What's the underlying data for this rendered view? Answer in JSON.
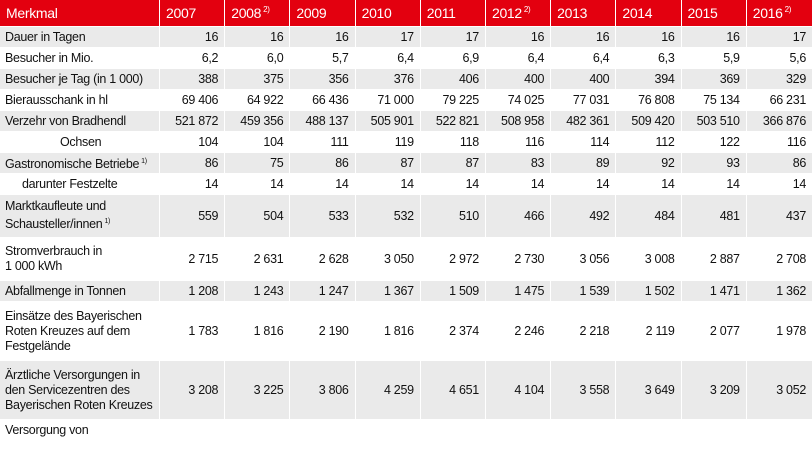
{
  "table": {
    "header_label": "Merkmal",
    "years": [
      {
        "year": "2007",
        "note": ""
      },
      {
        "year": "2008",
        "note": "2)"
      },
      {
        "year": "2009",
        "note": ""
      },
      {
        "year": "2010",
        "note": ""
      },
      {
        "year": "2011",
        "note": ""
      },
      {
        "year": "2012",
        "note": "2)"
      },
      {
        "year": "2013",
        "note": ""
      },
      {
        "year": "2014",
        "note": ""
      },
      {
        "year": "2015",
        "note": ""
      },
      {
        "year": "2016",
        "note": "2)"
      }
    ],
    "rows": [
      {
        "label": "Dauer in Tagen",
        "note": "",
        "values": [
          "16",
          "16",
          "16",
          "17",
          "17",
          "16",
          "16",
          "16",
          "16",
          "17"
        ]
      },
      {
        "label": "Besucher in Mio.",
        "note": "",
        "values": [
          "6,2",
          "6,0",
          "5,7",
          "6,4",
          "6,9",
          "6,4",
          "6,4",
          "6,3",
          "5,9",
          "5,6"
        ]
      },
      {
        "label": "Besucher je Tag (in 1 000)",
        "note": "",
        "values": [
          "388",
          "375",
          "356",
          "376",
          "406",
          "400",
          "400",
          "394",
          "369",
          "329"
        ]
      },
      {
        "label": "Bierausschank in hl",
        "note": "",
        "values": [
          "69 406",
          "64 922",
          "66 436",
          "71 000",
          "79 225",
          "74 025",
          "77 031",
          "76 808",
          "75 134",
          "66 231"
        ]
      },
      {
        "label": "Verzehr von Bradhendl",
        "note": "",
        "values": [
          "521 872",
          "459 356",
          "488 137",
          "505 901",
          "522 821",
          "508 958",
          "482 361",
          "509 420",
          "503 510",
          "366 876"
        ]
      },
      {
        "label": "Ochsen",
        "note": "",
        "values": [
          "104",
          "104",
          "111",
          "119",
          "118",
          "116",
          "114",
          "112",
          "122",
          "116"
        ]
      },
      {
        "label": "Gastronomische Betriebe",
        "note": "1)",
        "values": [
          "86",
          "75",
          "86",
          "87",
          "87",
          "83",
          "89",
          "92",
          "93",
          "86"
        ]
      },
      {
        "label": "darunter Festzelte",
        "note": "",
        "values": [
          "14",
          "14",
          "14",
          "14",
          "14",
          "14",
          "14",
          "14",
          "14",
          "14"
        ]
      },
      {
        "label": "Marktkaufleute und Schausteller/innen",
        "note": "1)",
        "values": [
          "559",
          "504",
          "533",
          "532",
          "510",
          "466",
          "492",
          "484",
          "481",
          "437"
        ]
      },
      {
        "label": "Stromverbrauch in 1 000 kWh",
        "note": "",
        "values": [
          "2 715",
          "2 631",
          "2 628",
          "3 050",
          "2 972",
          "2 730",
          "3 056",
          "3 008",
          "2 887",
          "2 708"
        ]
      },
      {
        "label": "Abfallmenge in Tonnen",
        "note": "",
        "values": [
          "1 208",
          "1 243",
          "1 247",
          "1 367",
          "1 509",
          "1 475",
          "1 539",
          "1 502",
          "1 471",
          "1 362"
        ]
      },
      {
        "label": "Einsätze des Bayerischen Roten Kreuzes auf dem Festgelände",
        "note": "",
        "values": [
          "1 783",
          "1 816",
          "2 190",
          "1 816",
          "2 374",
          "2 246",
          "2 218",
          "2 119",
          "2 077",
          "1 978"
        ]
      },
      {
        "label": "Ärztliche Versorgungen in den Servicezentren des Bayerischen Roten Kreuzes",
        "note": "",
        "values": [
          "3 208",
          "3 225",
          "3 806",
          "4 259",
          "4 651",
          "4 104",
          "3 558",
          "3 649",
          "3 209",
          "3 052"
        ]
      },
      {
        "label": "Versorgung von",
        "note": "",
        "values": [
          "",
          "",
          "",
          "",
          "",
          "",
          "",
          "",
          "",
          ""
        ]
      }
    ]
  },
  "colors": {
    "header_bg": "#e3000f",
    "header_text": "#ffffff",
    "row_shaded": "#eaeaea",
    "row_plain": "#ffffff"
  }
}
